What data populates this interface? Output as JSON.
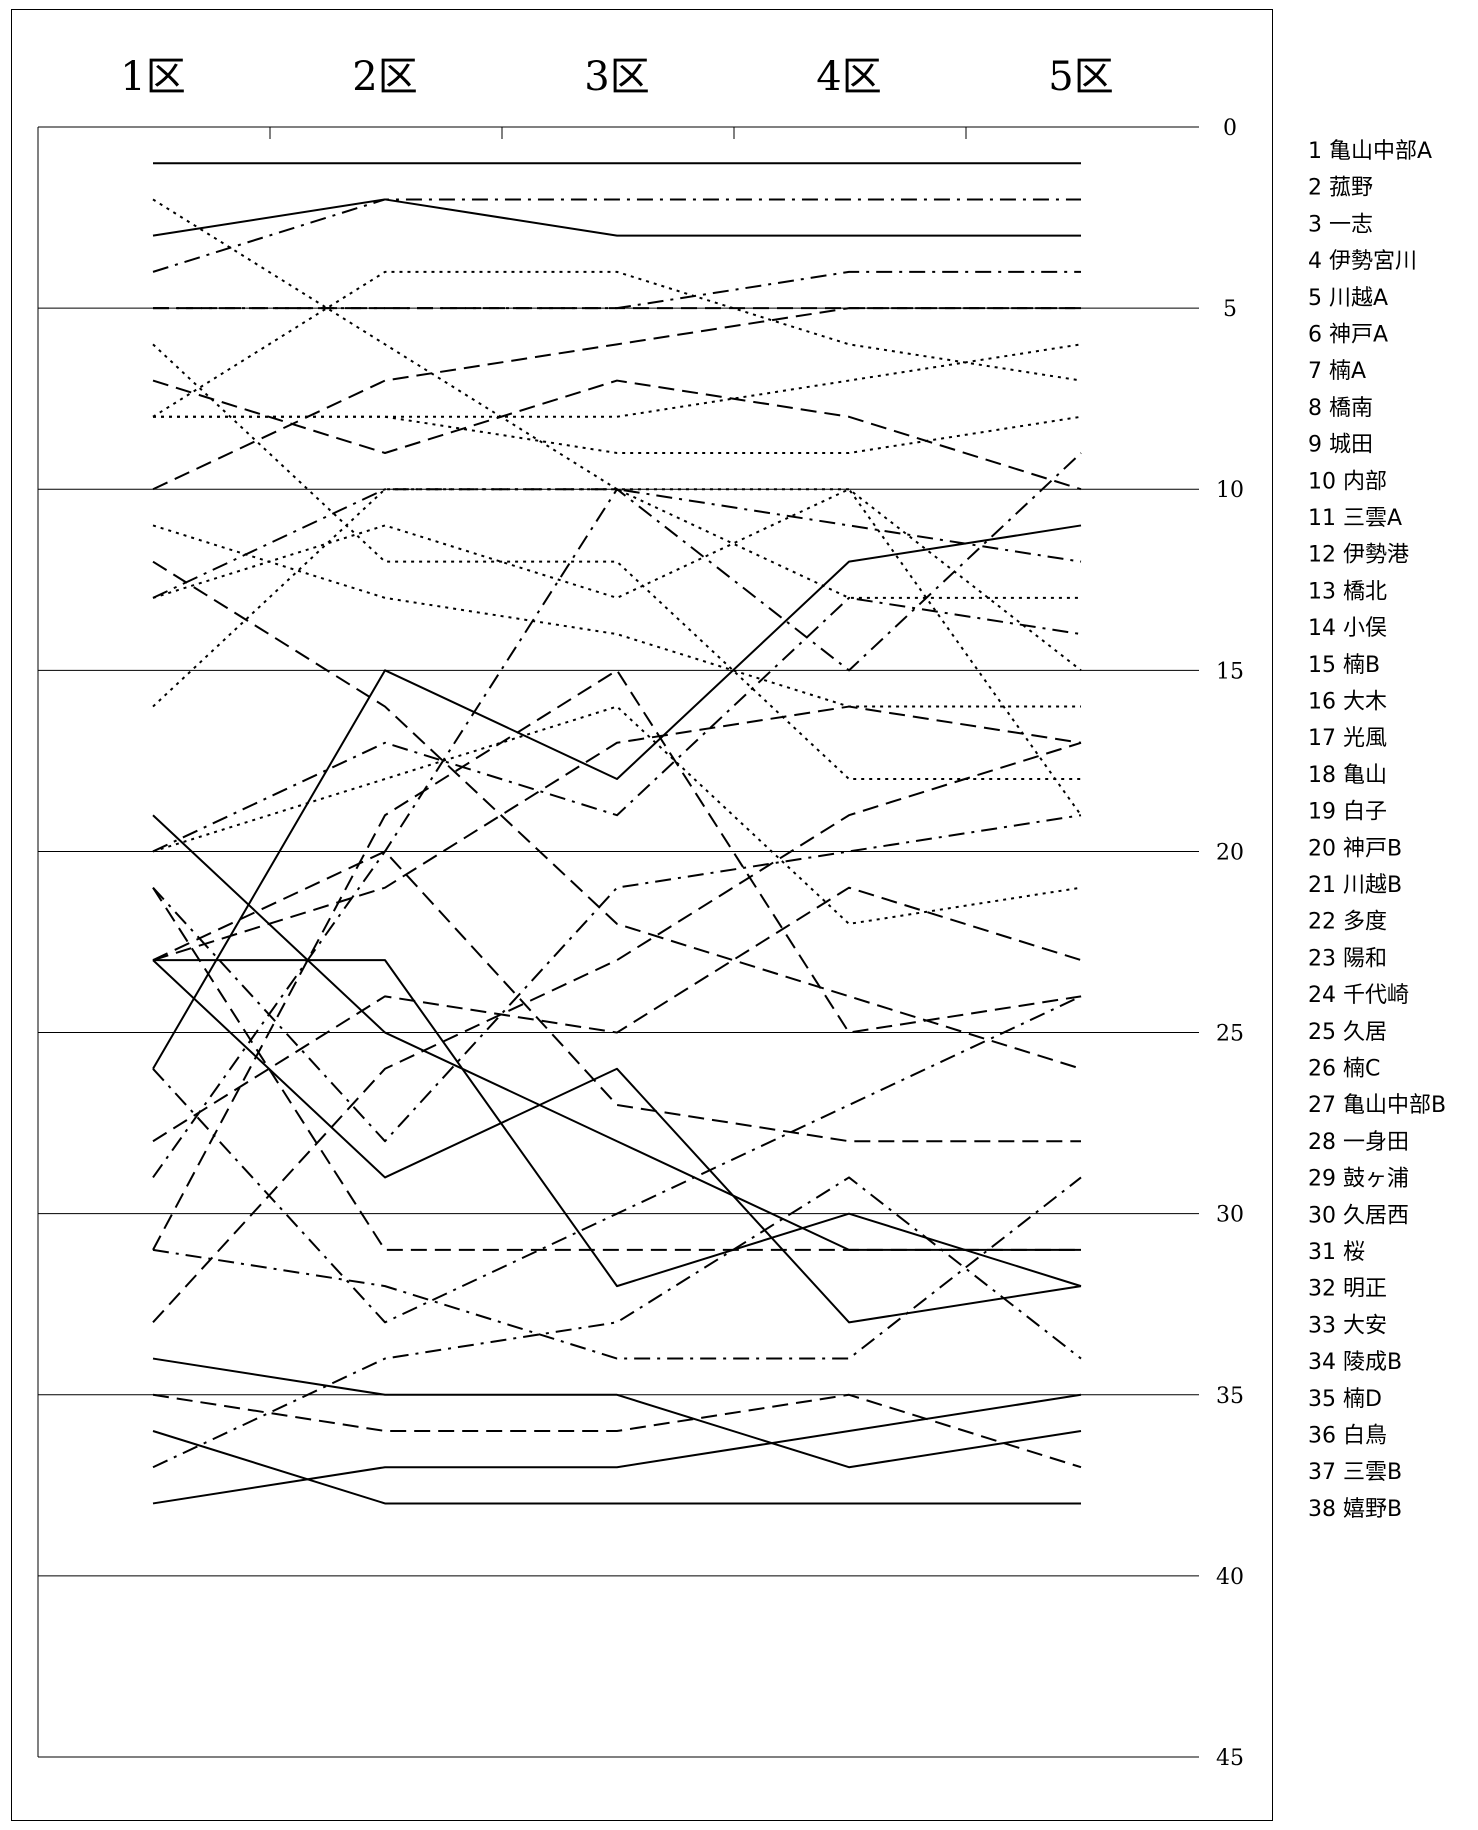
{
  "chart_data": {
    "type": "line",
    "categories": [
      "1区",
      "2区",
      "3区",
      "4区",
      "5区"
    ],
    "y_ticks": [
      "0",
      "5",
      "10",
      "15",
      "20",
      "25",
      "30",
      "35",
      "40",
      "45"
    ],
    "ylim": [
      0,
      45
    ],
    "y_inverted": true,
    "grid": "horizontal every 5",
    "legend_position": "right",
    "series": [
      {
        "name": "1 亀山中部A",
        "style": "solid",
        "values": [
          1,
          1,
          1,
          1,
          1
        ]
      },
      {
        "name": "2 菰野",
        "style": "dashdot",
        "values": [
          4,
          2,
          2,
          2,
          2
        ]
      },
      {
        "name": "3 一志",
        "style": "solid",
        "values": [
          3,
          2,
          3,
          3,
          3
        ]
      },
      {
        "name": "4 伊勢宮川",
        "style": "dashdot",
        "values": [
          5,
          5,
          5,
          4,
          4
        ]
      },
      {
        "name": "5 川越A",
        "style": "dashed",
        "values": [
          5,
          5,
          5,
          5,
          5
        ]
      },
      {
        "name": "6 神戸A",
        "style": "dotted",
        "values": [
          8,
          4,
          4,
          6,
          7
        ]
      },
      {
        "name": "7 楠A",
        "style": "dashed",
        "values": [
          10,
          7,
          6,
          5,
          5
        ]
      },
      {
        "name": "8 橋南",
        "style": "dotted",
        "values": [
          8,
          8,
          8,
          7,
          6
        ]
      },
      {
        "name": "9 城田",
        "style": "dotted",
        "values": [
          8,
          8,
          9,
          9,
          8
        ]
      },
      {
        "name": "10 内部",
        "style": "dashed",
        "values": [
          7,
          9,
          7,
          8,
          10
        ]
      },
      {
        "name": "11 三雲A",
        "style": "dotted",
        "values": [
          2,
          6,
          10,
          10,
          15
        ]
      },
      {
        "name": "12 伊勢港",
        "style": "dotted",
        "values": [
          6,
          12,
          12,
          18,
          18
        ]
      },
      {
        "name": "13 橋北",
        "style": "dotted",
        "values": [
          16,
          10,
          10,
          13,
          13
        ]
      },
      {
        "name": "14 小俣",
        "style": "dashdot",
        "values": [
          13,
          10,
          10,
          11,
          12
        ]
      },
      {
        "name": "15 楠B",
        "style": "dotted",
        "values": [
          11,
          13,
          14,
          16,
          16
        ]
      },
      {
        "name": "16 大木",
        "style": "dashed",
        "values": [
          12,
          16,
          22,
          24,
          26
        ]
      },
      {
        "name": "17 光風",
        "style": "solid",
        "values": [
          26,
          15,
          18,
          12,
          11
        ]
      },
      {
        "name": "18 亀山",
        "style": "dashdot",
        "values": [
          29,
          20,
          10,
          15,
          9
        ]
      },
      {
        "name": "19 白子",
        "style": "dotted",
        "values": [
          13,
          11,
          13,
          10,
          19
        ]
      },
      {
        "name": "20 神戸B",
        "style": "dashdot",
        "values": [
          20,
          17,
          19,
          13,
          14
        ]
      },
      {
        "name": "21 川越B",
        "style": "dotted",
        "values": [
          20,
          18,
          16,
          22,
          21
        ]
      },
      {
        "name": "22 多度",
        "style": "dashed",
        "values": [
          23,
          20,
          27,
          28,
          28
        ]
      },
      {
        "name": "23 陽和",
        "style": "dashed",
        "values": [
          28,
          24,
          25,
          21,
          23
        ]
      },
      {
        "name": "24 千代崎",
        "style": "dashed",
        "values": [
          31,
          19,
          15,
          25,
          24
        ]
      },
      {
        "name": "25 久居",
        "style": "dashed",
        "values": [
          23,
          21,
          17,
          16,
          17
        ]
      },
      {
        "name": "26 楠C",
        "style": "dashed",
        "values": [
          33,
          26,
          23,
          19,
          17
        ]
      },
      {
        "name": "27 亀山中部B",
        "style": "dashdot",
        "values": [
          21,
          28,
          21,
          20,
          19
        ]
      },
      {
        "name": "28 一身田",
        "style": "dashed",
        "values": [
          21,
          31,
          31,
          31,
          31
        ]
      },
      {
        "name": "29 鼓ヶ浦",
        "style": "dashdot",
        "values": [
          26,
          33,
          30,
          27,
          24
        ]
      },
      {
        "name": "30 久居西",
        "style": "solid",
        "values": [
          19,
          25,
          28,
          31,
          31
        ]
      },
      {
        "name": "31 桜",
        "style": "solid",
        "values": [
          23,
          23,
          32,
          30,
          32
        ]
      },
      {
        "name": "32 明正",
        "style": "solid",
        "values": [
          23,
          29,
          26,
          33,
          32
        ]
      },
      {
        "name": "33 大安",
        "style": "dashdot",
        "values": [
          31,
          32,
          34,
          34,
          29
        ]
      },
      {
        "name": "34 陵成B",
        "style": "dashdot",
        "values": [
          37,
          34,
          33,
          29,
          34
        ]
      },
      {
        "name": "35 楠D",
        "style": "dashed",
        "values": [
          35,
          36,
          36,
          35,
          37
        ]
      },
      {
        "name": "36 白鳥",
        "style": "solid",
        "values": [
          34,
          35,
          35,
          37,
          36
        ]
      },
      {
        "name": "37 三雲B",
        "style": "solid",
        "values": [
          36,
          38,
          38,
          38,
          38
        ]
      },
      {
        "name": "38 嬉野B",
        "style": "solid",
        "values": [
          38,
          37,
          37,
          36,
          35
        ]
      }
    ]
  }
}
